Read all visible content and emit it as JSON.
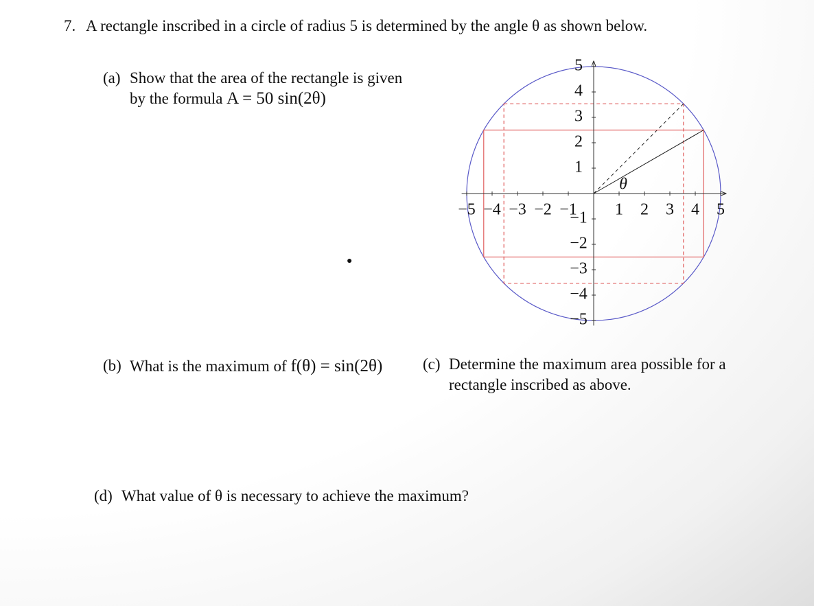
{
  "problem": {
    "number": "7.",
    "statement": "A rectangle inscribed in a circle of radius 5 is determined by the angle θ as shown below.",
    "parts": {
      "a": {
        "label": "(a)",
        "line1": "Show that the area of the rectangle is given",
        "line2": "by the formula",
        "formula": "A = 50 sin(2θ)"
      },
      "b": {
        "label": "(b)",
        "text": "What is the maximum of",
        "formula": "f(θ) = sin(2θ)"
      },
      "c": {
        "label": "(c)",
        "line1": "Determine the maximum area possible for a",
        "line2": "rectangle inscribed as above."
      },
      "d": {
        "label": "(d)",
        "text": "What value of θ is necessary to achieve the maximum?"
      }
    },
    "diagram": {
      "angle_label": "θ",
      "xticks": [
        {
          "value": -5,
          "label": "−5"
        },
        {
          "value": -4,
          "label": "−4"
        },
        {
          "value": -3,
          "label": "−3"
        },
        {
          "value": -2,
          "label": "−2"
        },
        {
          "value": -1,
          "label": "−1"
        },
        {
          "value": 1,
          "label": "1"
        },
        {
          "value": 2,
          "label": "2"
        },
        {
          "value": 3,
          "label": "3"
        },
        {
          "value": 4,
          "label": "4"
        },
        {
          "value": 5,
          "label": "5"
        }
      ],
      "yticks": [
        {
          "value": 5,
          "label": "5"
        },
        {
          "value": 4,
          "label": "4"
        },
        {
          "value": 3,
          "label": "3"
        },
        {
          "value": 2,
          "label": "2"
        },
        {
          "value": 1,
          "label": "1"
        },
        {
          "value": -1,
          "label": "−1"
        },
        {
          "value": -2,
          "label": "−2"
        },
        {
          "value": -3,
          "label": "−3"
        },
        {
          "value": -4,
          "label": "−4"
        },
        {
          "value": -5,
          "label": "−5"
        }
      ]
    }
  }
}
